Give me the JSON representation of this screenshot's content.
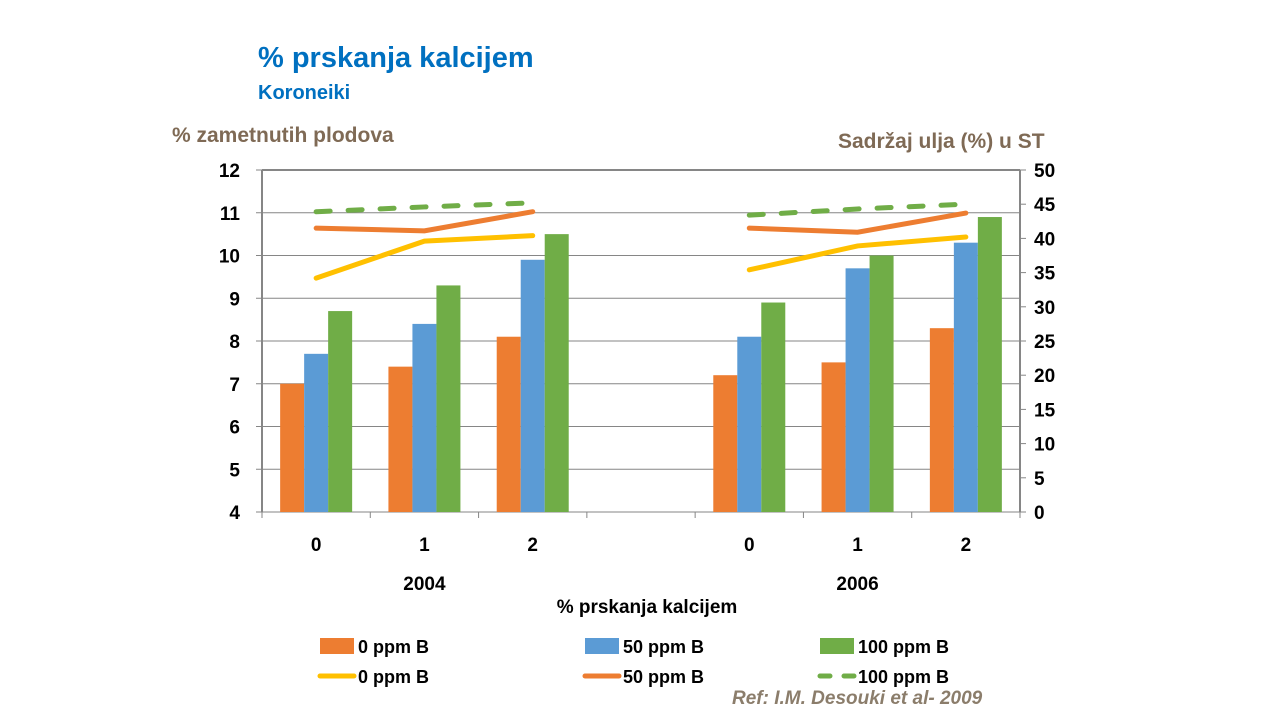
{
  "chart_data": {
    "type": "bar+line",
    "title": "% prskanja kalcijem",
    "subtitle": "Koroneiki",
    "xlabel": "% prskanja kalcijem",
    "ylabel": "% zametnutih plodova",
    "y2label": "Sadržaj ulja (%)  u ST",
    "categories": [
      "0",
      "1",
      "2",
      "",
      "0",
      "1",
      "2"
    ],
    "groups": [
      {
        "label": "2004"
      },
      {
        "label": "2006"
      }
    ],
    "ylim": [
      4,
      12
    ],
    "yticks": [
      4,
      5,
      6,
      7,
      8,
      9,
      10,
      11,
      12
    ],
    "y2lim": [
      0,
      50
    ],
    "y2ticks": [
      0,
      5,
      10,
      15,
      20,
      25,
      30,
      35,
      40,
      45,
      50
    ],
    "grid": true,
    "legend_position": "bottom",
    "bar_series": [
      {
        "name": "0 ppm B",
        "color": "#ED7D31",
        "values": [
          7.0,
          7.4,
          8.1,
          null,
          7.2,
          7.5,
          8.3
        ]
      },
      {
        "name": "50 ppm B",
        "color": "#5B9BD5",
        "values": [
          7.7,
          8.4,
          9.9,
          null,
          8.1,
          9.7,
          10.3
        ]
      },
      {
        "name": "100 ppm B",
        "color": "#70AD47",
        "values": [
          8.7,
          9.3,
          10.5,
          null,
          8.9,
          10.0,
          10.9
        ]
      }
    ],
    "line_series": [
      {
        "name": "0 ppm B",
        "color": "#FFC000",
        "dash": false,
        "values": [
          34.2,
          39.6,
          40.4,
          null,
          35.4,
          38.9,
          40.2
        ]
      },
      {
        "name": "50 ppm B",
        "color": "#ED7D31",
        "dash": false,
        "values": [
          41.5,
          41.1,
          43.9,
          null,
          41.5,
          40.9,
          43.7
        ]
      },
      {
        "name": "100 ppm B",
        "color": "#70AD47",
        "dash": true,
        "values": [
          43.9,
          44.6,
          45.2,
          null,
          43.4,
          44.3,
          45.0
        ]
      }
    ]
  },
  "reference": "Ref: I.M. Desouki et al- 2009"
}
